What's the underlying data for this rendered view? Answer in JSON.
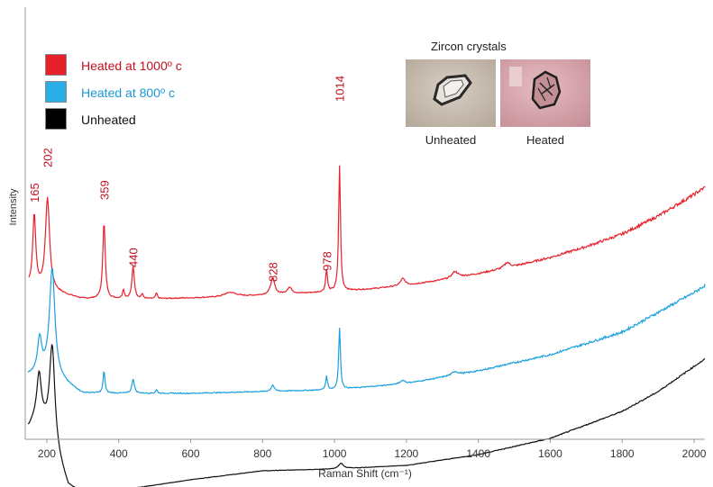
{
  "chart_data": {
    "type": "line",
    "xlabel": "Raman Shift (cm⁻¹)",
    "ylabel": "Intensity",
    "xlim": [
      140,
      2030
    ],
    "xticks": [
      200,
      400,
      600,
      800,
      1000,
      1200,
      1400,
      1600,
      1800,
      2000
    ],
    "y_ticks_shown": false,
    "grid": false,
    "legend_position": "top-left",
    "series": [
      {
        "name": "Heated at 1000º c",
        "color": "#e8202a",
        "baseline": [
          [
            150,
            50
          ],
          [
            300,
            36
          ],
          [
            500,
            36
          ],
          [
            700,
            38
          ],
          [
            900,
            42
          ],
          [
            1000,
            44
          ],
          [
            1100,
            47
          ],
          [
            1200,
            51
          ],
          [
            1300,
            57
          ],
          [
            1400,
            64
          ],
          [
            1500,
            72
          ],
          [
            1600,
            82
          ],
          [
            1700,
            94
          ],
          [
            1800,
            108
          ],
          [
            1900,
            128
          ],
          [
            2000,
            152
          ],
          [
            2030,
            160
          ]
        ],
        "peaks": [
          [
            165,
            80,
            5
          ],
          [
            202,
            102,
            7
          ],
          [
            359,
            86,
            4
          ],
          [
            413,
            10,
            3
          ],
          [
            440,
            36,
            4
          ],
          [
            465,
            5,
            3
          ],
          [
            505,
            6,
            3
          ],
          [
            710,
            5,
            20
          ],
          [
            828,
            18,
            7
          ],
          [
            875,
            7,
            8
          ],
          [
            978,
            25,
            3
          ],
          [
            1014,
            140,
            3
          ],
          [
            1190,
            8,
            8
          ],
          [
            1335,
            7,
            10
          ],
          [
            1480,
            6,
            10
          ]
        ],
        "noise": 1.2
      },
      {
        "name": "Heated at 800º c",
        "color": "#1aa1dd",
        "baseline": [
          [
            150,
            20
          ],
          [
            200,
            22
          ],
          [
            300,
            0
          ],
          [
            400,
            0
          ],
          [
            600,
            0
          ],
          [
            800,
            2
          ],
          [
            1000,
            4
          ],
          [
            1200,
            11
          ],
          [
            1400,
            25
          ],
          [
            1600,
            43
          ],
          [
            1800,
            68
          ],
          [
            1900,
            90
          ],
          [
            2000,
            112
          ],
          [
            2030,
            120
          ]
        ],
        "peaks": [
          [
            180,
            38,
            7
          ],
          [
            215,
            120,
            9
          ],
          [
            359,
            25,
            3
          ],
          [
            440,
            16,
            4
          ],
          [
            505,
            4,
            3
          ],
          [
            828,
            7,
            5
          ],
          [
            978,
            15,
            3
          ],
          [
            1014,
            68,
            3
          ],
          [
            1190,
            4,
            8
          ],
          [
            1335,
            4,
            10
          ]
        ],
        "noise": 1.1
      },
      {
        "name": "Unheated",
        "color": "#111111",
        "baseline": [
          [
            150,
            0
          ],
          [
            180,
            18
          ],
          [
            260,
            -66
          ],
          [
            300,
            -72
          ],
          [
            400,
            -70
          ],
          [
            500,
            -64
          ],
          [
            600,
            -58
          ],
          [
            800,
            -48
          ],
          [
            1000,
            -46
          ],
          [
            1200,
            -42
          ],
          [
            1400,
            -30
          ],
          [
            1600,
            -12
          ],
          [
            1800,
            18
          ],
          [
            1900,
            40
          ],
          [
            2000,
            68
          ],
          [
            2030,
            76
          ]
        ],
        "peaks": [
          [
            178,
            40,
            7
          ],
          [
            215,
            110,
            9
          ],
          [
            1018,
            6,
            8
          ]
        ],
        "noise": 0.5
      }
    ],
    "annotations": [
      {
        "text": "165",
        "x": 165
      },
      {
        "text": "202",
        "x": 202
      },
      {
        "text": "359",
        "x": 359
      },
      {
        "text": "440",
        "x": 440
      },
      {
        "text": "828",
        "x": 828
      },
      {
        "text": "978",
        "x": 978
      },
      {
        "text": "1014",
        "x": 1014
      }
    ],
    "annotation_color": "#c0111f"
  },
  "inset": {
    "title": "Zircon crystals",
    "items": [
      {
        "label": "Unheated"
      },
      {
        "label": "Heated"
      }
    ]
  }
}
